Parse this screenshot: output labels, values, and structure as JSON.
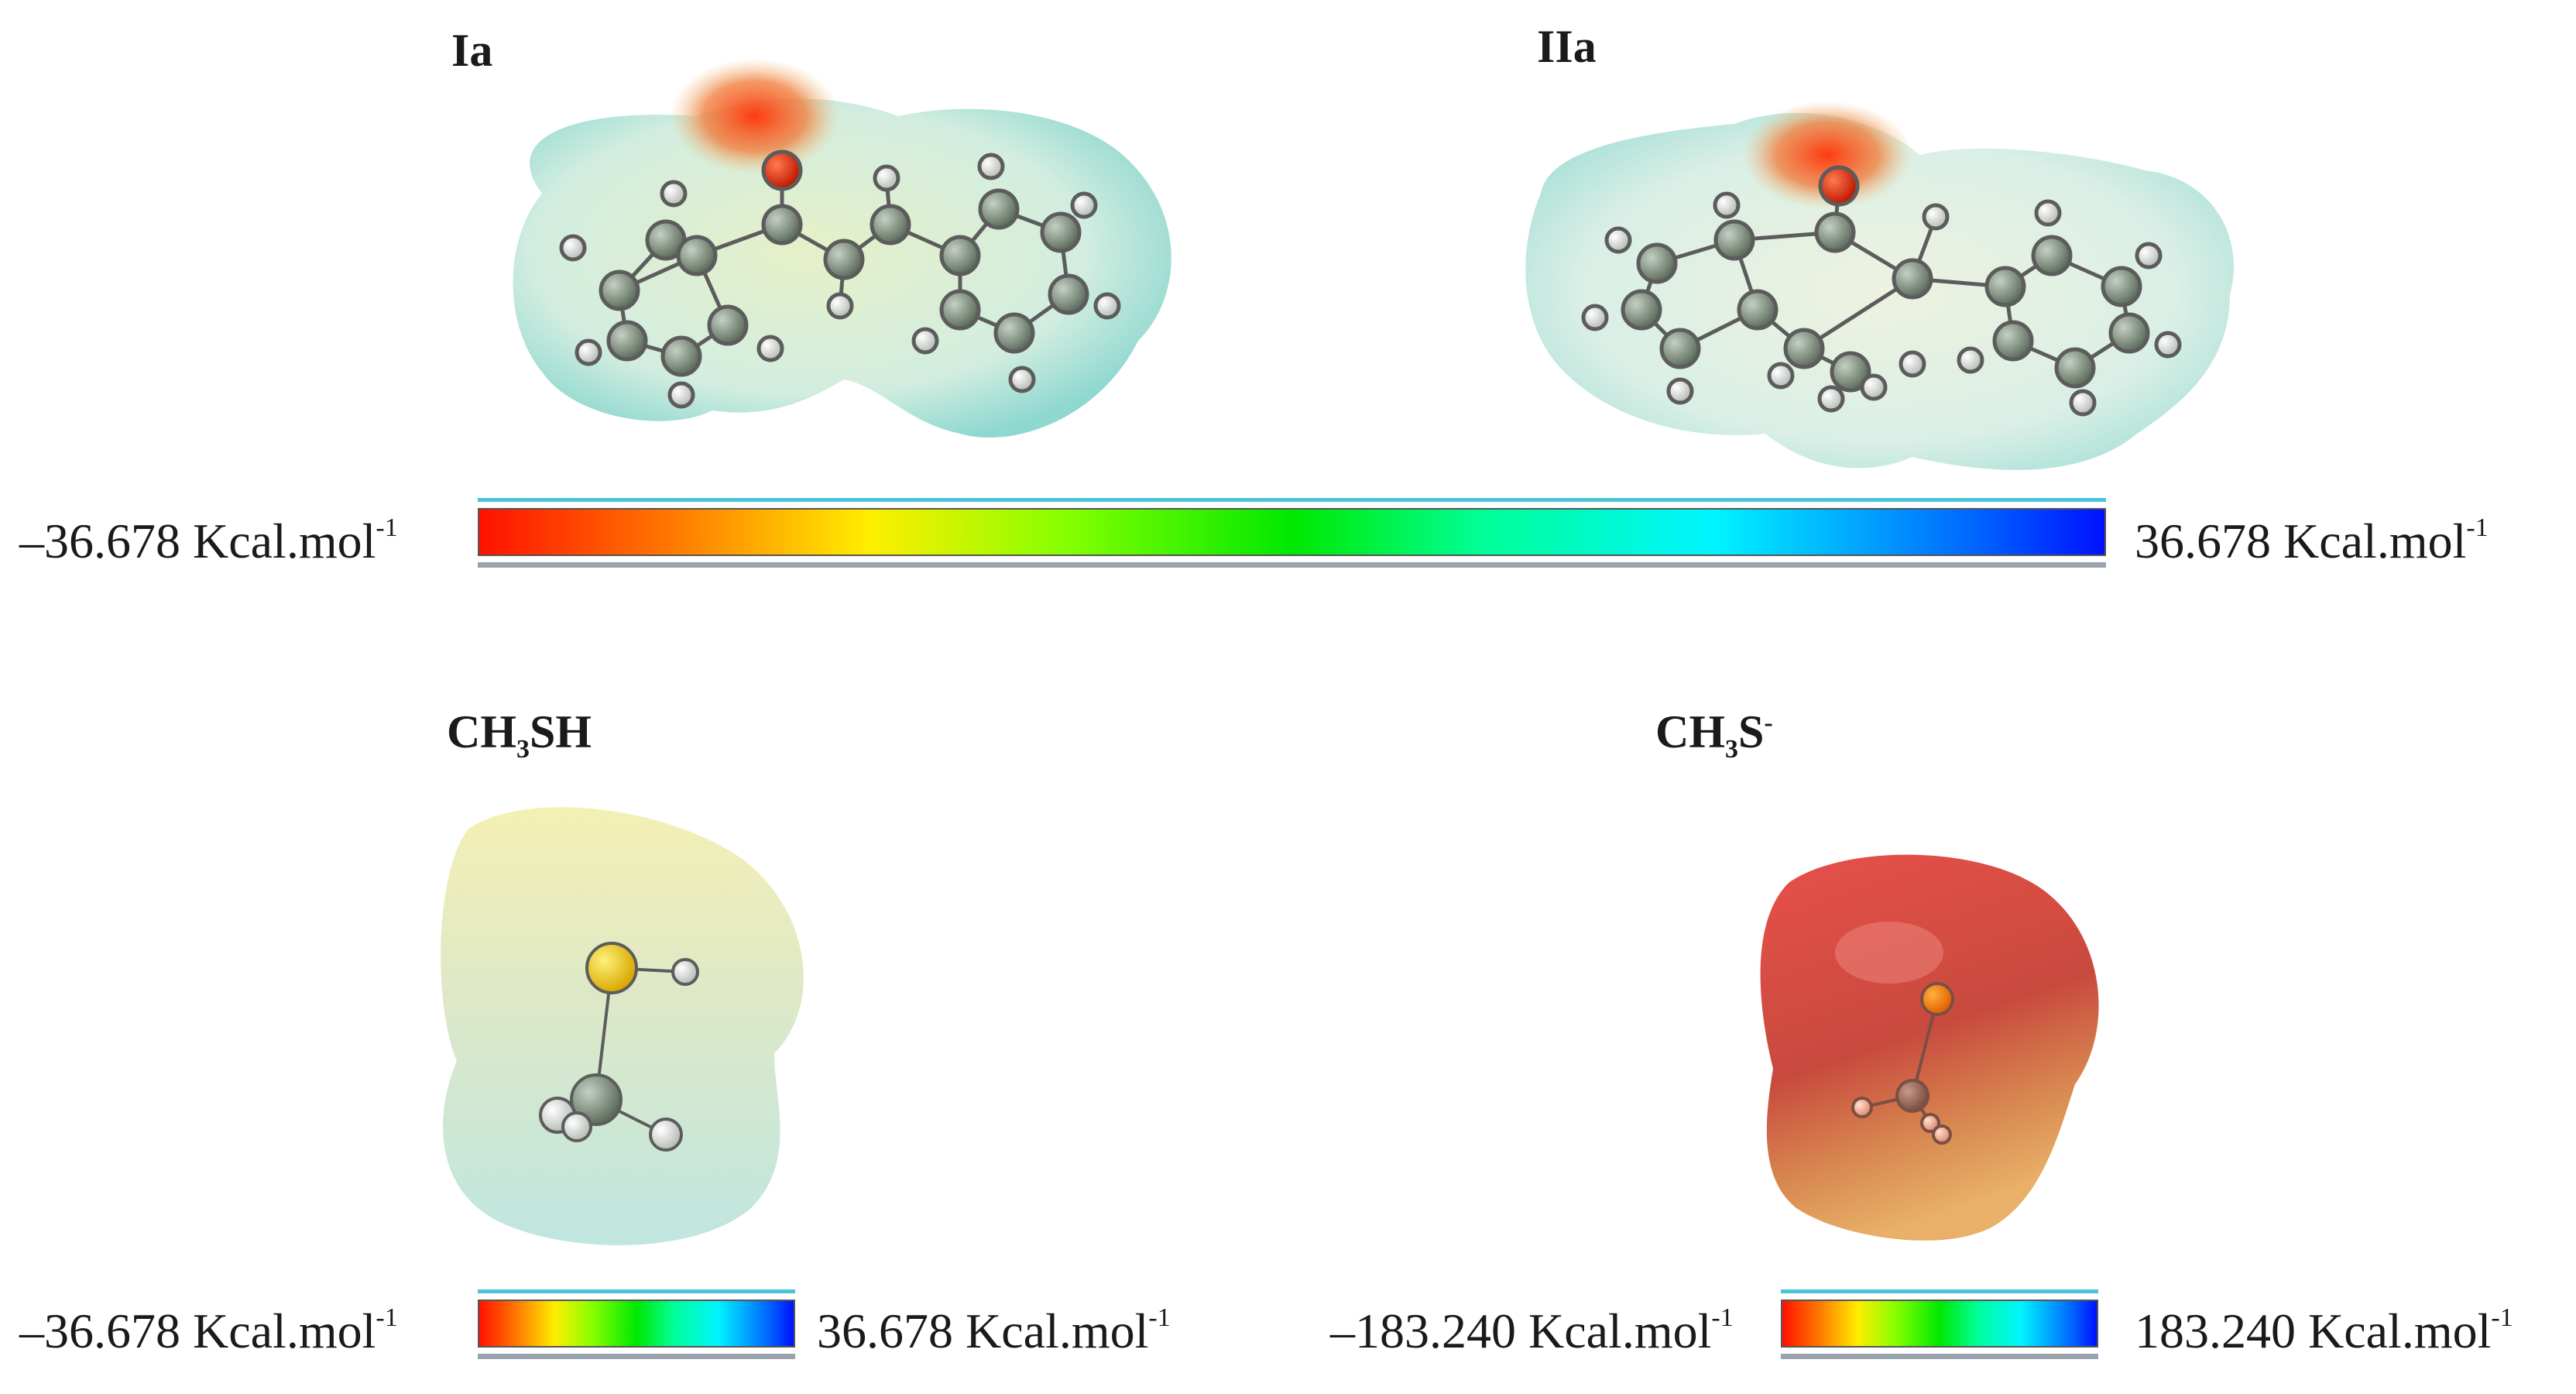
{
  "molecules": {
    "ia": {
      "title": "Ia"
    },
    "iia": {
      "title": "IIa"
    },
    "ch3sh": {
      "title_main": "CH",
      "title_sub": "3",
      "title_tail": "SH"
    },
    "ch3s": {
      "title_main": "CH",
      "title_sub": "3",
      "title_tail": "S",
      "title_sup": "-"
    }
  },
  "scales": {
    "top": {
      "min": "–36.678 Kcal.mol",
      "max": "36.678 Kcal.mol",
      "exp": "-1"
    },
    "ch3sh": {
      "min": "–36.678 Kcal.mol",
      "max": "36.678 Kcal.mol",
      "exp": "-1"
    },
    "ch3s": {
      "min": "–183.240 Kcal.mol",
      "max": "183.240 Kcal.mol",
      "exp": "-1"
    }
  },
  "colors": {
    "carbon": "#7d8c7d",
    "hydrogen": "#eeeeee",
    "oxygen": "#e02000",
    "sulfur": "#f2cc10",
    "surface_neutral": "#bfe9e0"
  }
}
